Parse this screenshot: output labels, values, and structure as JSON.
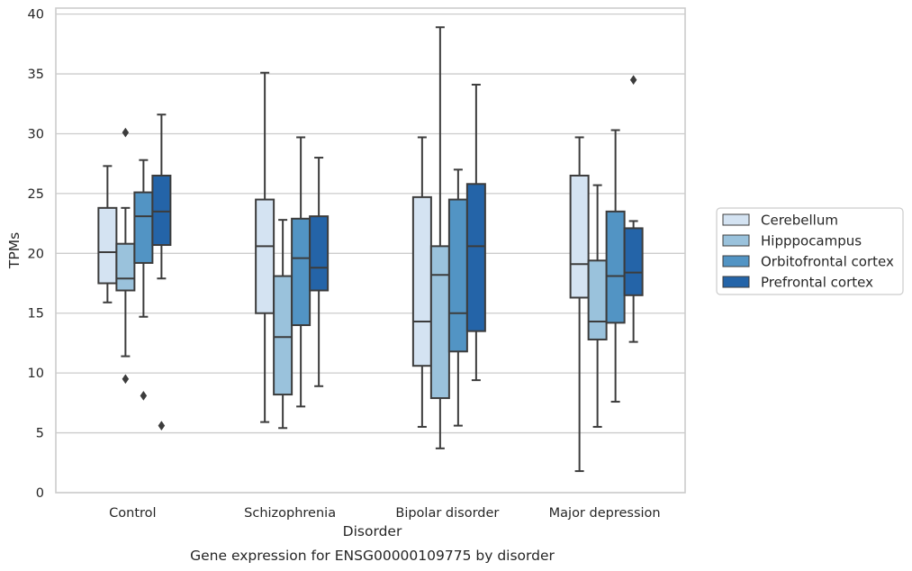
{
  "chart_data": {
    "type": "box",
    "title": "Gene expression for ENSG00000109775 by disorder",
    "xlabel": "Disorder",
    "ylabel": "TPMs",
    "ylim": [
      0,
      40.5
    ],
    "yticks": [
      0,
      5,
      10,
      15,
      20,
      25,
      30,
      35,
      40
    ],
    "grid": true,
    "legend_position": "right",
    "categories": [
      "Control",
      "Schizophrenia",
      "Bipolar disorder",
      "Major depression"
    ],
    "series": [
      {
        "name": "Cerebellum",
        "color": "#d4e3f2",
        "boxes": [
          {
            "whisker_low": 15.9,
            "q1": 17.5,
            "median": 20.1,
            "q3": 23.8,
            "whisker_high": 27.3,
            "outliers": []
          },
          {
            "whisker_low": 5.9,
            "q1": 15.0,
            "median": 20.6,
            "q3": 24.5,
            "whisker_high": 35.1,
            "outliers": []
          },
          {
            "whisker_low": 5.5,
            "q1": 10.6,
            "median": 14.3,
            "q3": 24.7,
            "whisker_high": 29.7,
            "outliers": []
          },
          {
            "whisker_low": 1.8,
            "q1": 16.3,
            "median": 19.1,
            "q3": 26.5,
            "whisker_high": 29.7,
            "outliers": []
          }
        ]
      },
      {
        "name": "Hipppocampus",
        "color": "#9ac2dc",
        "boxes": [
          {
            "whisker_low": 11.4,
            "q1": 16.9,
            "median": 17.9,
            "q3": 20.8,
            "whisker_high": 23.8,
            "outliers": [
              30.1,
              9.5
            ]
          },
          {
            "whisker_low": 5.4,
            "q1": 8.2,
            "median": 13.0,
            "q3": 18.1,
            "whisker_high": 22.8,
            "outliers": []
          },
          {
            "whisker_low": 3.7,
            "q1": 7.9,
            "median": 18.2,
            "q3": 20.6,
            "whisker_high": 38.9,
            "outliers": []
          },
          {
            "whisker_low": 5.5,
            "q1": 12.8,
            "median": 14.3,
            "q3": 19.4,
            "whisker_high": 25.7,
            "outliers": []
          }
        ]
      },
      {
        "name": "Orbitofrontal cortex",
        "color": "#5294c4",
        "boxes": [
          {
            "whisker_low": 14.7,
            "q1": 19.2,
            "median": 23.1,
            "q3": 25.1,
            "whisker_high": 27.8,
            "outliers": [
              8.1
            ]
          },
          {
            "whisker_low": 7.2,
            "q1": 14.0,
            "median": 19.6,
            "q3": 22.9,
            "whisker_high": 29.7,
            "outliers": []
          },
          {
            "whisker_low": 5.6,
            "q1": 11.8,
            "median": 15.0,
            "q3": 24.5,
            "whisker_high": 27.0,
            "outliers": []
          },
          {
            "whisker_low": 7.6,
            "q1": 14.2,
            "median": 18.1,
            "q3": 23.5,
            "whisker_high": 30.3,
            "outliers": []
          }
        ]
      },
      {
        "name": "Prefrontal cortex",
        "color": "#2464a8",
        "boxes": [
          {
            "whisker_low": 17.9,
            "q1": 20.7,
            "median": 23.5,
            "q3": 26.5,
            "whisker_high": 31.6,
            "outliers": [
              5.6
            ]
          },
          {
            "whisker_low": 8.9,
            "q1": 16.9,
            "median": 18.8,
            "q3": 23.1,
            "whisker_high": 28.0,
            "outliers": []
          },
          {
            "whisker_low": 9.4,
            "q1": 13.5,
            "median": 20.6,
            "q3": 25.8,
            "whisker_high": 34.1,
            "outliers": []
          },
          {
            "whisker_low": 12.6,
            "q1": 16.5,
            "median": 18.4,
            "q3": 22.1,
            "whisker_high": 22.7,
            "outliers": [
              34.5
            ]
          }
        ]
      }
    ]
  }
}
